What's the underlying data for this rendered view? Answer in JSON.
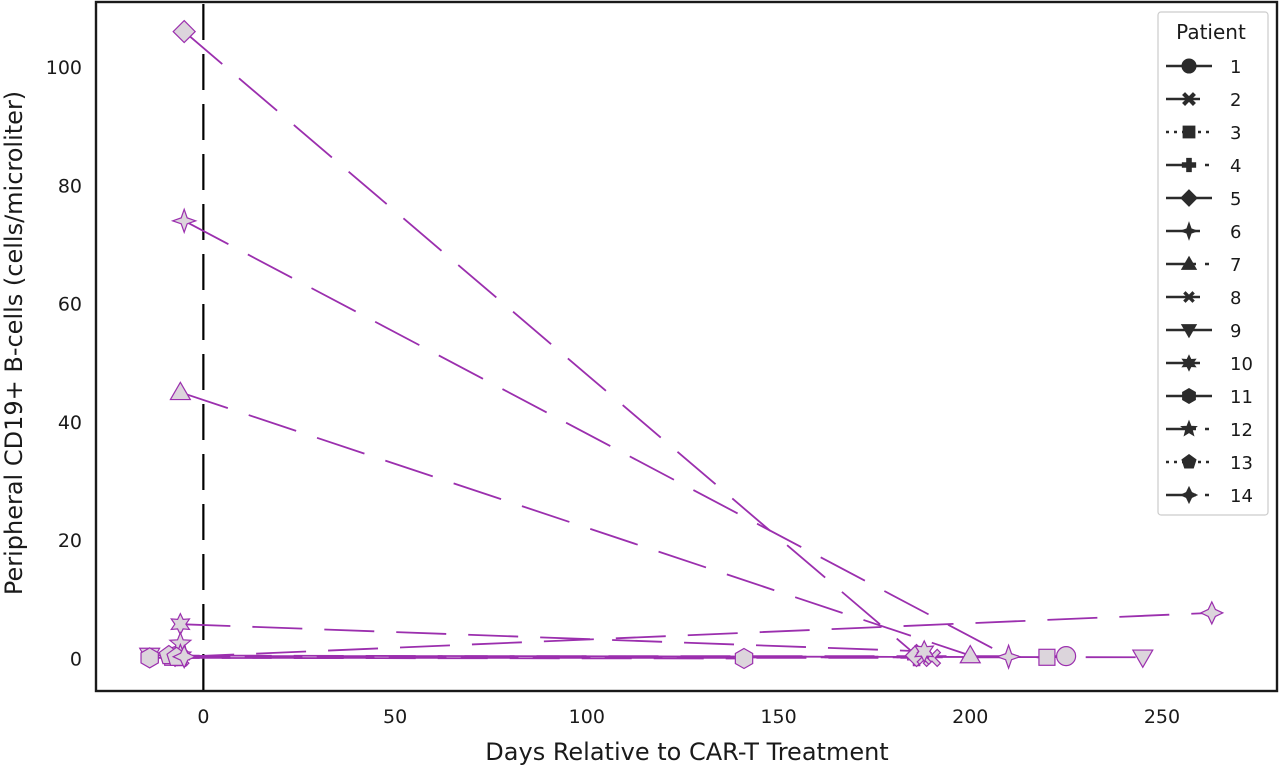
{
  "chart_data": {
    "type": "line",
    "title": "",
    "xlabel": "Days Relative to CAR-T Treatment",
    "ylabel": "Peripheral CD19+ B-cells (cells/microliter)",
    "xlim": [
      -28,
      280
    ],
    "ylim": [
      -5.5,
      111
    ],
    "xticks": [
      0,
      50,
      100,
      150,
      200,
      250
    ],
    "yticks": [
      0,
      20,
      40,
      60,
      80,
      100
    ],
    "grid": false,
    "treatment_marker_x": 0,
    "legend": {
      "title": "Patient",
      "placement": "top-right"
    },
    "colors": {
      "series_line": "#9b2fae",
      "marker_fill": "#dcd5dc",
      "marker_edge": "#9b2fae",
      "axis": "#1a1a1a",
      "legend_glyph": "#2b2b2b"
    },
    "series": [
      {
        "name": "1",
        "marker": "circle",
        "dash": "solid",
        "points": [
          [
            -7,
            0.4
          ],
          [
            225,
            0.4
          ]
        ]
      },
      {
        "name": "2",
        "marker": "x",
        "dash": "dashed",
        "points": [
          [
            -6,
            0.1
          ],
          [
            190,
            0.1
          ]
        ]
      },
      {
        "name": "3",
        "marker": "square",
        "dash": "dotted",
        "points": [
          [
            -8,
            0.2
          ],
          [
            220,
            0.2
          ]
        ]
      },
      {
        "name": "4",
        "marker": "plus",
        "dash": "dashdot",
        "points": [
          [
            -6,
            0.3
          ],
          [
            186,
            0.3
          ]
        ]
      },
      {
        "name": "5",
        "marker": "diamond",
        "dash": "solid",
        "points": [
          [
            -5,
            106
          ],
          [
            186,
            0.5
          ]
        ]
      },
      {
        "name": "6",
        "marker": "thin-diamond",
        "dash": "dashed",
        "points": [
          [
            -5,
            74
          ],
          [
            210,
            0.3
          ]
        ]
      },
      {
        "name": "7",
        "marker": "triangle-up",
        "dash": "dashdot",
        "points": [
          [
            -6,
            45
          ],
          [
            200,
            0.5
          ]
        ]
      },
      {
        "name": "8",
        "marker": "x-small",
        "dash": "dashed",
        "points": [
          [
            -7,
            0.2
          ],
          [
            188,
            0.2
          ]
        ]
      },
      {
        "name": "9",
        "marker": "triangle-down",
        "dash": "solid",
        "points": [
          [
            -14,
            0.5
          ],
          [
            245,
            0.2
          ]
        ]
      },
      {
        "name": "10",
        "marker": "star6",
        "dash": "dashed",
        "points": [
          [
            -6,
            5.8
          ],
          [
            188,
            1.2
          ]
        ]
      },
      {
        "name": "11",
        "marker": "hexagon",
        "dash": "solid",
        "points": [
          [
            -14,
            0.1
          ],
          [
            141,
            0.0
          ]
        ]
      },
      {
        "name": "12",
        "marker": "star5",
        "dash": "dashdot",
        "points": [
          [
            -6,
            2.5
          ],
          [
            -6,
            0.5
          ]
        ]
      },
      {
        "name": "13",
        "marker": "pentagon",
        "dash": "dotted",
        "points": [
          [
            -9,
            0.5
          ],
          [
            -7,
            0.2
          ]
        ]
      },
      {
        "name": "14",
        "marker": "star4",
        "dash": "dashdot",
        "points": [
          [
            -5,
            0.3
          ],
          [
            263,
            7.7
          ]
        ]
      }
    ]
  }
}
